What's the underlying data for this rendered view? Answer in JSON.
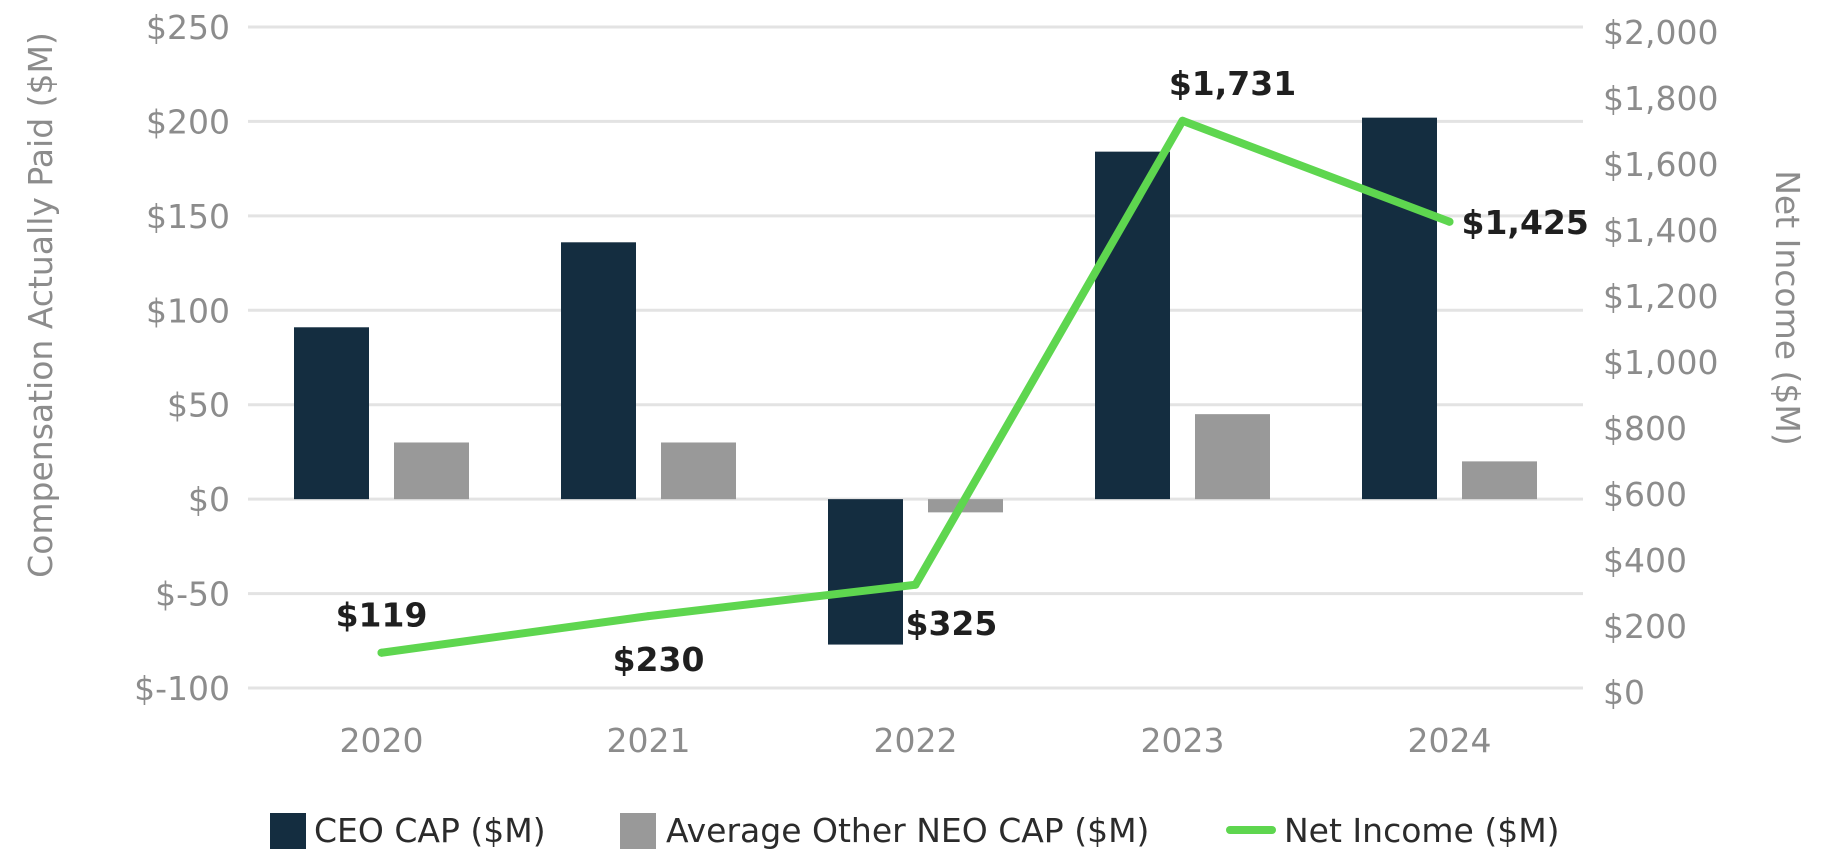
{
  "chart_data": {
    "type": "bar",
    "title": "",
    "categories": [
      "2020",
      "2021",
      "2022",
      "2023",
      "2024"
    ],
    "ylabel": "Compensation Actually Paid ($M)",
    "y2label": "Net Income ($M)",
    "ylim": [
      -100,
      250
    ],
    "y2lim": [
      0,
      2000
    ],
    "yticks": [
      "$250",
      "$200",
      "$150",
      "$100",
      "$50",
      "$0",
      "$-50",
      "$-100"
    ],
    "yticks_values": [
      250,
      200,
      150,
      100,
      50,
      0,
      -50,
      -100
    ],
    "y2ticks": [
      "$2,000",
      "$1,800",
      "$1,600",
      "$1,400",
      "$1,200",
      "$1,000",
      "$800",
      "$600",
      "$400",
      "$200",
      "$0"
    ],
    "y2ticks_values": [
      2000,
      1800,
      1600,
      1400,
      1200,
      1000,
      800,
      600,
      400,
      200,
      0
    ],
    "grid": true,
    "legend_position": "bottom",
    "series": [
      {
        "name": "CEO CAP ($M)",
        "type": "bar",
        "axis": "left",
        "color": "#142d40",
        "values": [
          91,
          136,
          -77,
          184,
          202
        ]
      },
      {
        "name": "Average Other NEO CAP ($M)",
        "type": "bar",
        "axis": "left",
        "color": "#999999",
        "values": [
          30,
          30,
          -7,
          45,
          20
        ]
      },
      {
        "name": "Net Income ($M)",
        "type": "line",
        "axis": "right",
        "color": "#5ed64f",
        "values": [
          119,
          230,
          325,
          1731,
          1425
        ],
        "labels": [
          "$119",
          "$230",
          "$325",
          "$1,731",
          "$1,425"
        ]
      }
    ]
  }
}
